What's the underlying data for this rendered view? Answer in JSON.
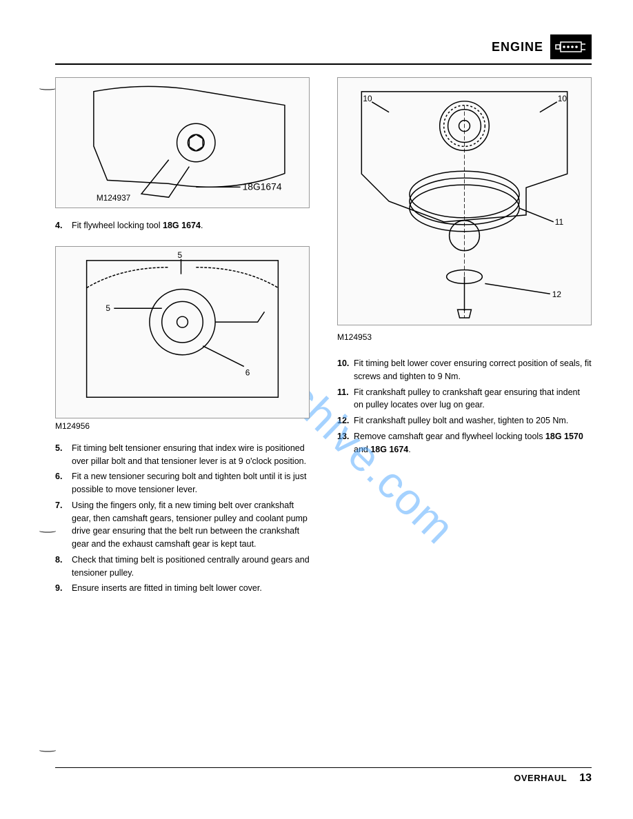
{
  "header": {
    "title": "ENGINE"
  },
  "watermark": "manualshive.com",
  "left_column": {
    "figure1": {
      "ref": "M124937",
      "tool_label": "18G1674",
      "alt": "[flywheel locking tool diagram]"
    },
    "steps_a": [
      {
        "n": "4.",
        "html": "Fit flywheel locking tool <b>18G 1674</b>."
      }
    ],
    "figure2": {
      "ref": "M124956",
      "callouts": [
        "5",
        "5",
        "6"
      ],
      "alt": "[timing belt tensioner diagram]"
    },
    "steps_b": [
      {
        "n": "5.",
        "html": "Fit timing belt tensioner ensuring that index wire is positioned over pillar bolt and that tensioner lever is at 9 o'clock position."
      },
      {
        "n": "6.",
        "html": "Fit a new tensioner securing bolt and tighten bolt until it is just possible to move tensioner lever."
      },
      {
        "n": "7.",
        "html": "Using the fingers only, fit a new timing belt over crankshaft gear, then camshaft gears, tensioner pulley and coolant pump drive gear ensuring that the belt run between the crankshaft gear and the exhaust camshaft gear is kept taut."
      },
      {
        "n": "8.",
        "html": "Check that timing belt is positioned centrally around gears and tensioner pulley."
      },
      {
        "n": "9.",
        "html": "Ensure inserts are fitted in timing belt lower cover."
      }
    ]
  },
  "right_column": {
    "figure3": {
      "ref": "M124953",
      "callouts": [
        "10",
        "10",
        "11",
        "12"
      ],
      "alt": "[crankshaft pulley assembly diagram]"
    },
    "steps": [
      {
        "n": "10.",
        "html": "Fit timing belt lower cover ensuring correct position of seals, fit screws and tighten to 9 Nm."
      },
      {
        "n": "11.",
        "html": "Fit crankshaft pulley to crankshaft gear ensuring that indent on pulley locates over lug on gear."
      },
      {
        "n": "12.",
        "html": "Fit crankshaft pulley bolt and washer, tighten to 205 Nm."
      },
      {
        "n": "13.",
        "html": "Remove camshaft gear and flywheel locking tools <b>18G 1570</b> and <b>18G 1674</b>."
      }
    ]
  },
  "footer": {
    "label": "OVERHAUL",
    "page": "13"
  }
}
